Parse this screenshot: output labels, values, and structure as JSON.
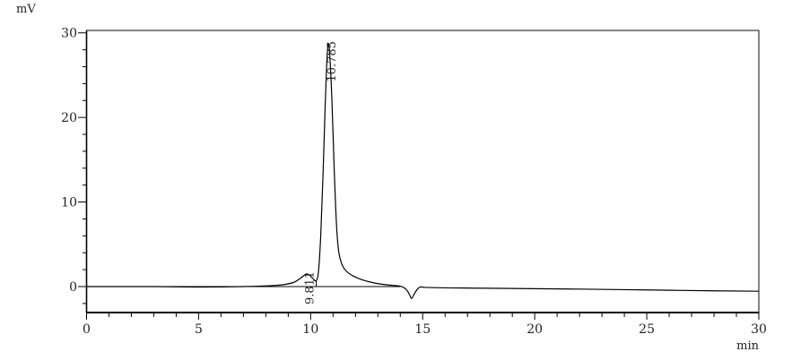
{
  "chart_data": {
    "type": "line",
    "title": "",
    "xlabel": "min",
    "ylabel": "mV",
    "xlim": [
      0,
      30
    ],
    "ylim": [
      -3.07,
      30.3
    ],
    "x_ticks": [
      0,
      5,
      10,
      15,
      20,
      25,
      30
    ],
    "x_tick_labels": [
      "0",
      "5",
      "10",
      "15",
      "20",
      "25",
      "30"
    ],
    "x_minor_step": 1,
    "y_ticks": [
      0,
      10,
      20,
      30
    ],
    "y_tick_labels": [
      "0",
      "10",
      "20",
      "30"
    ],
    "y_minor_step": 2,
    "grid": false,
    "line_color": "#000000",
    "series": [
      {
        "x": [
          0,
          3,
          5,
          7,
          8.5,
          9.2,
          9.5,
          9.7,
          9.81,
          9.95,
          10.1,
          10.25,
          10.35,
          10.45,
          10.55,
          10.65,
          10.72,
          10.785,
          10.85,
          10.95,
          11.05,
          11.15,
          11.25,
          11.4,
          11.6,
          11.9,
          12.3,
          12.8,
          13.4,
          14.0,
          14.25,
          14.4,
          14.5,
          14.6,
          14.75,
          14.9,
          15.1,
          16,
          18,
          20,
          22,
          25,
          28,
          30
        ],
        "y": [
          0.0,
          0.0,
          -0.05,
          0.0,
          0.15,
          0.45,
          0.9,
          1.3,
          1.5,
          1.35,
          0.95,
          0.7,
          1.8,
          6.0,
          13.0,
          21.5,
          26.5,
          28.7,
          27.5,
          22.0,
          14.0,
          7.5,
          4.2,
          2.6,
          1.8,
          1.25,
          0.8,
          0.45,
          0.2,
          0.05,
          -0.3,
          -0.9,
          -1.4,
          -1.0,
          -0.35,
          -0.05,
          -0.1,
          -0.15,
          -0.2,
          -0.25,
          -0.3,
          -0.4,
          -0.5,
          -0.55
        ]
      }
    ],
    "peak_labels": [
      {
        "x": 9.811,
        "y": 1.5,
        "label": "9.811"
      },
      {
        "x": 10.785,
        "y": 28.7,
        "label": "10.785"
      }
    ],
    "integration_baseline": {
      "x": [
        10.25,
        14.0
      ],
      "y": 0,
      "drop_line_x": 10.25,
      "drop_line_top": 0.7
    }
  }
}
